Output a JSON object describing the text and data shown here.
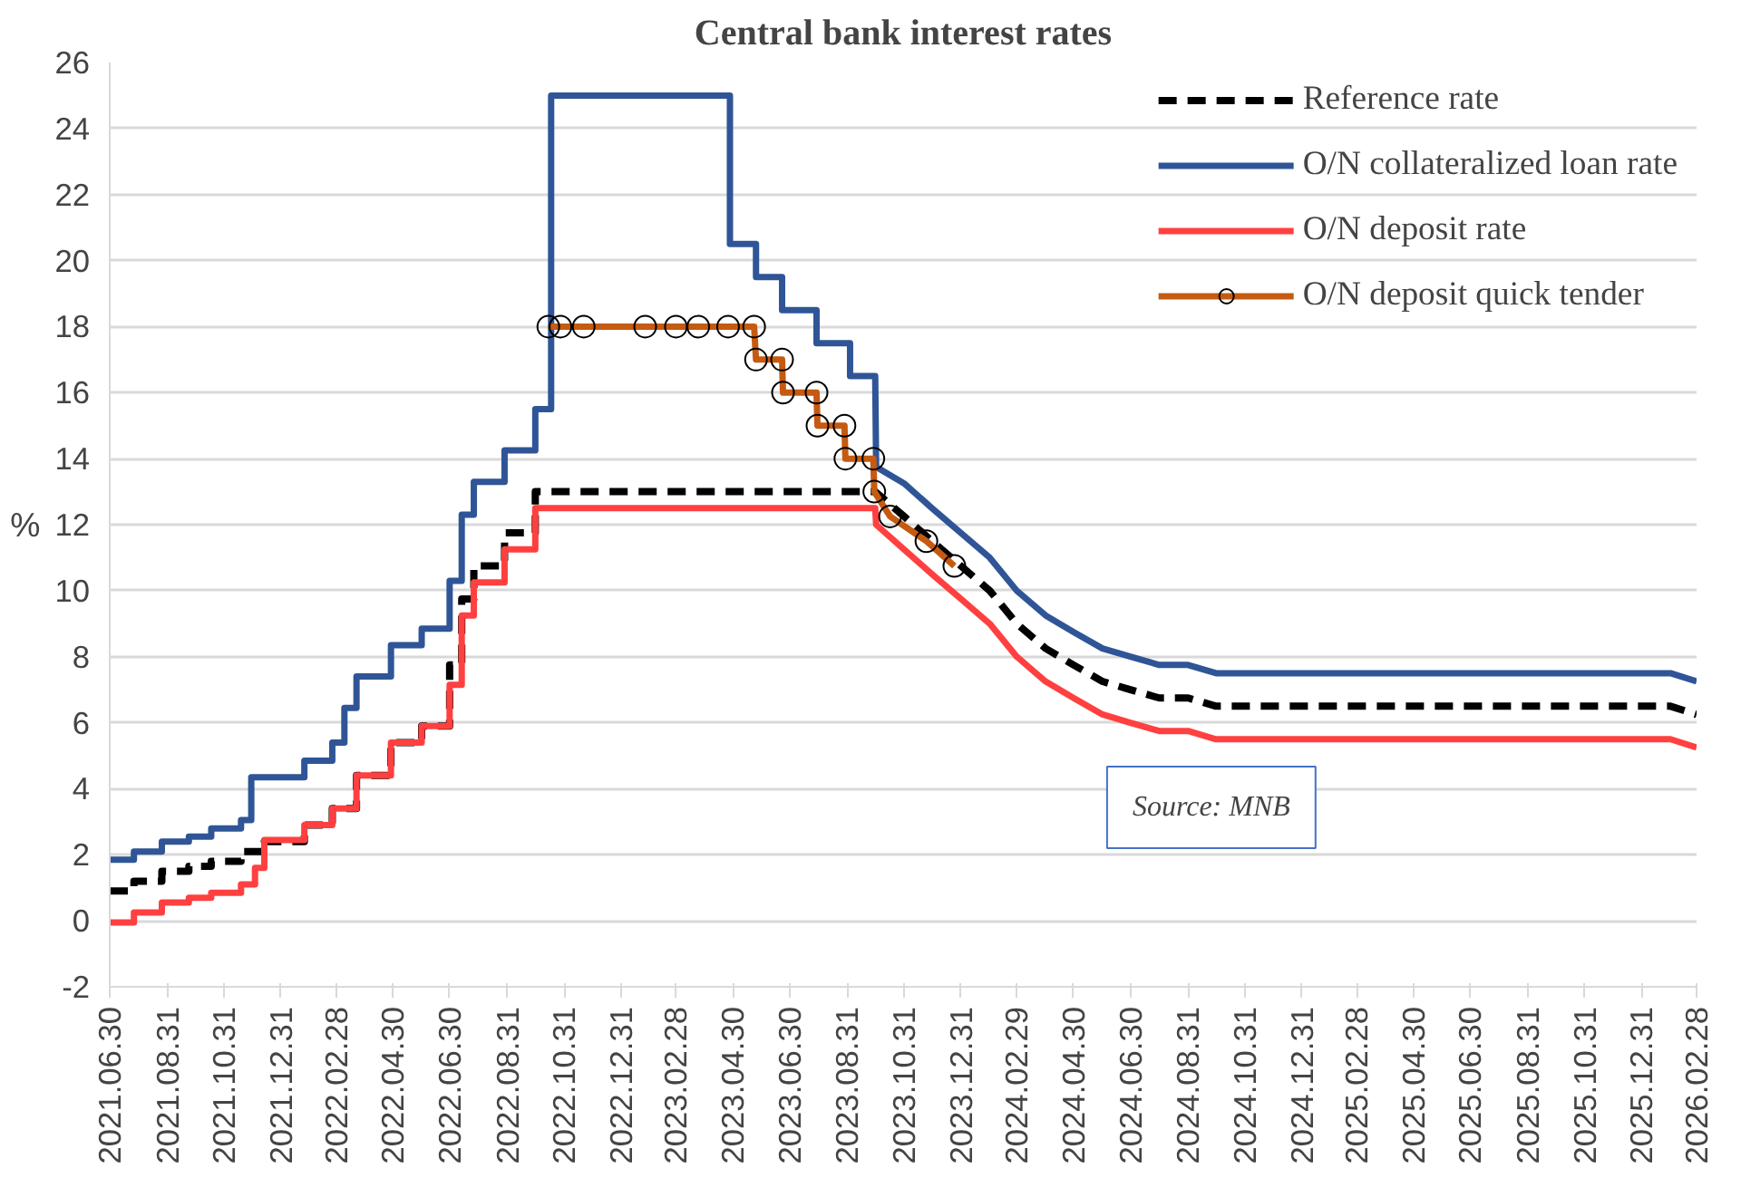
{
  "chart_data": {
    "type": "line",
    "title": "Central bank interest rates",
    "ylabel": "%",
    "xlim": [
      "2021-06-30",
      "2026-02-28"
    ],
    "xticks": [
      {
        "value": "2021-06-30",
        "label": "2021.06.30"
      },
      {
        "value": "2021-08-31",
        "label": "2021.08.31"
      },
      {
        "value": "2021-10-31",
        "label": "2021.10.31"
      },
      {
        "value": "2021-12-31",
        "label": "2021.12.31"
      },
      {
        "value": "2022-02-28",
        "label": "2022.02.28"
      },
      {
        "value": "2022-04-30",
        "label": "2022.04.30"
      },
      {
        "value": "2022-06-30",
        "label": "2022.06.30"
      },
      {
        "value": "2022-08-31",
        "label": "2022.08.31"
      },
      {
        "value": "2022-10-31",
        "label": "2022.10.31"
      },
      {
        "value": "2022-12-31",
        "label": "2022.12.31"
      },
      {
        "value": "2023-02-28",
        "label": "2023.02.28"
      },
      {
        "value": "2023-04-30",
        "label": "2023.04.30"
      },
      {
        "value": "2023-06-30",
        "label": "2023.06.30"
      },
      {
        "value": "2023-08-31",
        "label": "2023.08.31"
      },
      {
        "value": "2023-10-31",
        "label": "2023.10.31"
      },
      {
        "value": "2023-12-31",
        "label": "2023.12.31"
      },
      {
        "value": "2024-02-29",
        "label": "2024.02.29"
      },
      {
        "value": "2024-04-30",
        "label": "2024.04.30"
      },
      {
        "value": "2024-06-30",
        "label": "2024.06.30"
      },
      {
        "value": "2024-08-31",
        "label": "2024.08.31"
      },
      {
        "value": "2024-10-31",
        "label": "2024.10.31"
      },
      {
        "value": "2024-12-31",
        "label": "2024.12.31"
      },
      {
        "value": "2025-02-28",
        "label": "2025.02.28"
      },
      {
        "value": "2025-04-30",
        "label": "2025.04.30"
      },
      {
        "value": "2025-06-30",
        "label": "2025.06.30"
      },
      {
        "value": "2025-08-31",
        "label": "2025.08.31"
      },
      {
        "value": "2025-10-31",
        "label": "2025.10.31"
      },
      {
        "value": "2025-12-31",
        "label": "2025.12.31"
      },
      {
        "value": "2026-02-28",
        "label": "2026.02.28"
      }
    ],
    "ylim": [
      -2,
      26
    ],
    "yticks": [
      -2,
      0,
      2,
      4,
      6,
      8,
      10,
      12,
      14,
      16,
      18,
      20,
      22,
      24,
      26
    ],
    "grid": "y",
    "legend": "top right",
    "annotations": [
      "Source: MNB"
    ],
    "series": [
      {
        "name": "Reference rate",
        "color": "#000000",
        "line_style": "dashed",
        "x": [
          "2021-06-30",
          "2021-07-26",
          "2021-07-26",
          "2021-08-25",
          "2021-08-25",
          "2021-09-23",
          "2021-09-23",
          "2021-10-17",
          "2021-10-17",
          "2021-11-18",
          "2021-11-18",
          "2021-12-13",
          "2021-12-13",
          "2022-01-25",
          "2022-01-25",
          "2022-02-24",
          "2022-02-24",
          "2022-03-22",
          "2022-03-22",
          "2022-04-28",
          "2022-04-28",
          "2022-05-31",
          "2022-05-31",
          "2022-06-30",
          "2022-06-30",
          "2022-07-13",
          "2022-07-13",
          "2022-07-26",
          "2022-07-26",
          "2022-08-28",
          "2022-08-28",
          "2022-09-30",
          "2022-09-30",
          "2023-09-30",
          "2023-10-31",
          "2023-11-30",
          "2023-12-31",
          "2024-01-31",
          "2024-02-29",
          "2024-03-31",
          "2024-04-30",
          "2024-05-31",
          "2024-06-30",
          "2024-07-31",
          "2024-08-31",
          "2024-09-30",
          "2026-01-31",
          "2026-02-28"
        ],
        "values": [
          0.9,
          0.9,
          1.2,
          1.2,
          1.5,
          1.5,
          1.65,
          1.65,
          1.8,
          1.8,
          2.1,
          2.1,
          2.4,
          2.4,
          2.9,
          2.9,
          3.4,
          3.4,
          4.4,
          4.4,
          5.4,
          5.4,
          5.9,
          5.9,
          7.75,
          7.75,
          9.75,
          9.75,
          10.75,
          10.75,
          11.75,
          11.75,
          13,
          13,
          12.25,
          11.5,
          10.75,
          10,
          9,
          8.25,
          7.75,
          7.25,
          7,
          6.75,
          6.75,
          6.5,
          6.5,
          6.25
        ]
      },
      {
        "name": "O/N collateralized loan rate",
        "color": "#2f5597",
        "line_style": "solid",
        "x": [
          "2021-06-30",
          "2021-07-26",
          "2021-07-26",
          "2021-08-25",
          "2021-08-25",
          "2021-09-23",
          "2021-09-23",
          "2021-10-17",
          "2021-10-17",
          "2021-11-18",
          "2021-11-18",
          "2021-11-29",
          "2021-11-29",
          "2022-01-25",
          "2022-01-25",
          "2022-02-24",
          "2022-02-24",
          "2022-03-09",
          "2022-03-09",
          "2022-03-22",
          "2022-03-22",
          "2022-04-28",
          "2022-04-28",
          "2022-05-31",
          "2022-05-31",
          "2022-06-30",
          "2022-06-30",
          "2022-07-13",
          "2022-07-13",
          "2022-07-26",
          "2022-07-26",
          "2022-08-28",
          "2022-08-28",
          "2022-09-30",
          "2022-09-30",
          "2022-10-17",
          "2022-10-17",
          "2023-04-27",
          "2023-04-27",
          "2023-05-25",
          "2023-05-25",
          "2023-06-22",
          "2023-06-22",
          "2023-07-29",
          "2023-07-29",
          "2023-09-03",
          "2023-09-03",
          "2023-09-30",
          "2023-10-01",
          "2023-10-31",
          "2023-11-30",
          "2023-12-31",
          "2024-01-31",
          "2024-02-29",
          "2024-03-31",
          "2024-04-30",
          "2024-05-31",
          "2024-06-30",
          "2024-07-31",
          "2024-08-31",
          "2024-09-30",
          "2026-01-31",
          "2026-02-28"
        ],
        "values": [
          1.85,
          1.85,
          2.1,
          2.1,
          2.4,
          2.4,
          2.55,
          2.55,
          2.8,
          2.8,
          3.05,
          3.05,
          4.35,
          4.35,
          4.85,
          4.85,
          5.4,
          5.4,
          6.45,
          6.45,
          7.4,
          7.4,
          8.35,
          8.35,
          8.85,
          8.85,
          10.3,
          10.3,
          12.3,
          12.3,
          13.3,
          13.3,
          14.25,
          14.25,
          15.5,
          15.5,
          25,
          25,
          20.5,
          20.5,
          19.5,
          19.5,
          18.5,
          18.5,
          17.5,
          17.5,
          16.5,
          16.5,
          13.75,
          13.25,
          12.5,
          11.75,
          11,
          10,
          9.25,
          8.75,
          8.25,
          8,
          7.75,
          7.75,
          7.5,
          7.5,
          7.25
        ]
      },
      {
        "name": "O/N deposit rate",
        "color": "#ff4040",
        "line_style": "solid",
        "x": [
          "2021-06-30",
          "2021-07-26",
          "2021-07-26",
          "2021-08-25",
          "2021-08-25",
          "2021-09-23",
          "2021-09-23",
          "2021-10-17",
          "2021-10-17",
          "2021-11-18",
          "2021-11-18",
          "2021-12-03",
          "2021-12-03",
          "2021-12-13",
          "2021-12-13",
          "2022-01-25",
          "2022-01-25",
          "2022-02-24",
          "2022-02-24",
          "2022-03-22",
          "2022-03-22",
          "2022-04-28",
          "2022-04-28",
          "2022-05-31",
          "2022-05-31",
          "2022-06-30",
          "2022-06-30",
          "2022-07-13",
          "2022-07-13",
          "2022-07-26",
          "2022-07-26",
          "2022-08-28",
          "2022-08-28",
          "2022-09-30",
          "2022-09-30",
          "2023-09-30",
          "2023-10-01",
          "2023-10-31",
          "2023-11-30",
          "2023-12-31",
          "2024-01-31",
          "2024-02-29",
          "2024-03-31",
          "2024-04-30",
          "2024-05-31",
          "2024-06-30",
          "2024-07-31",
          "2024-08-31",
          "2024-09-30",
          "2026-01-31",
          "2026-02-28"
        ],
        "values": [
          -0.05,
          -0.05,
          0.25,
          0.25,
          0.55,
          0.55,
          0.7,
          0.7,
          0.85,
          0.85,
          1.1,
          1.1,
          1.6,
          1.6,
          2.45,
          2.45,
          2.9,
          2.9,
          3.4,
          3.4,
          4.4,
          4.4,
          5.4,
          5.4,
          5.9,
          5.9,
          7.15,
          7.15,
          9.25,
          9.25,
          10.25,
          10.25,
          11.25,
          11.25,
          12.5,
          12.5,
          12,
          11.25,
          10.5,
          9.75,
          9,
          8,
          7.25,
          6.75,
          6.25,
          6,
          5.75,
          5.75,
          5.5,
          5.5,
          5.25
        ]
      },
      {
        "name": "O/N deposit quick tender",
        "color": "#c55a11",
        "line_style": "solid",
        "marker": "circle",
        "x": [
          "2022-10-14",
          "2022-10-27",
          "2022-11-21",
          "2023-01-26",
          "2023-02-28",
          "2023-03-24",
          "2023-04-25",
          "2023-05-23",
          "2023-05-25",
          "2023-06-22",
          "2023-06-23",
          "2023-07-29",
          "2023-07-30",
          "2023-08-28",
          "2023-08-29",
          "2023-09-28",
          "2023-09-29",
          "2023-10-16",
          "2023-11-24",
          "2023-12-24"
        ],
        "values": [
          18,
          18,
          18,
          18,
          18,
          18,
          18,
          18,
          17,
          17,
          16,
          16,
          15,
          15,
          14,
          14,
          13,
          12.25,
          11.5,
          10.75
        ]
      }
    ]
  }
}
